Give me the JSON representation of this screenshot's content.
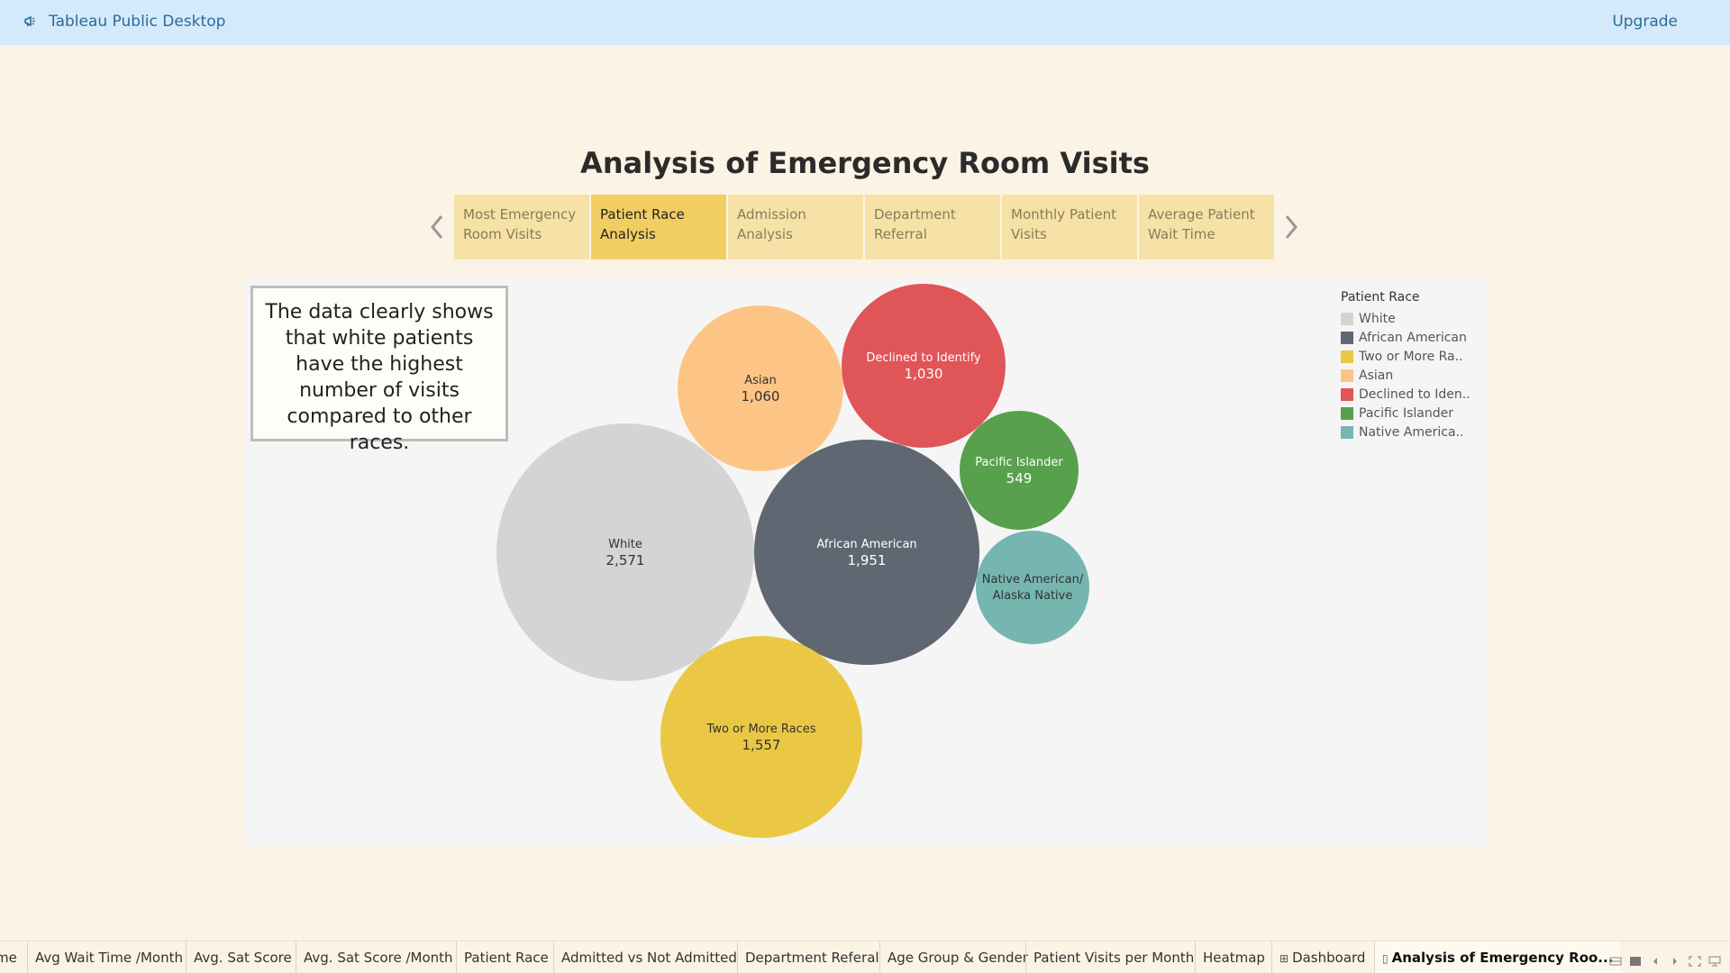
{
  "app": {
    "title": "Tableau Public Desktop",
    "upgrade_label": "Upgrade"
  },
  "story": {
    "title": "Analysis of Emergency Room Visits",
    "points": [
      {
        "label": "Most Emergency Room Visits",
        "active": false
      },
      {
        "label": "Patient Race Analysis",
        "active": true
      },
      {
        "label": "Admission Analysis",
        "active": false
      },
      {
        "label": "Department Referral",
        "active": false
      },
      {
        "label": "Monthly Patient Visits",
        "active": false
      },
      {
        "label": "Average Patient Wait Time",
        "active": false
      }
    ],
    "caption": "The data clearly shows that white patients have the highest number of visits compared to other races."
  },
  "chart_data": {
    "type": "bubble",
    "legend_title": "Patient Race",
    "legend_placement": "top-right",
    "series": [
      {
        "name": "White",
        "legend_label": "White",
        "value": 2571,
        "value_label": "2,571",
        "color": "#d4d4d4",
        "text_color": "#333333"
      },
      {
        "name": "African American",
        "legend_label": "African American",
        "value": 1951,
        "value_label": "1,951",
        "color": "#5f6772",
        "text_color": "#ffffff"
      },
      {
        "name": "Two or More Races",
        "legend_label": "Two or More Ra..",
        "value": 1557,
        "value_label": "1,557",
        "color": "#eac844",
        "text_color": "#333333"
      },
      {
        "name": "Asian",
        "legend_label": "Asian",
        "value": 1060,
        "value_label": "1,060",
        "color": "#fdc585",
        "text_color": "#333333"
      },
      {
        "name": "Declined to Identify",
        "legend_label": "Declined to Iden..",
        "value": 1030,
        "value_label": "1,030",
        "color": "#e05558",
        "text_color": "#ffffff"
      },
      {
        "name": "Pacific Islander",
        "legend_label": "Pacific Islander",
        "value": 549,
        "value_label": "549",
        "color": "#58a04d",
        "text_color": "#ffffff"
      },
      {
        "name": "Native American/Alaska Native",
        "legend_label": "Native America..",
        "value": null,
        "value_label": "",
        "color": "#76b6b0",
        "text_color": "#333333"
      }
    ]
  },
  "sheet_tabs": [
    {
      "label": "me",
      "active": false,
      "icon": ""
    },
    {
      "label": "Avg Wait Time /Month",
      "active": false,
      "icon": ""
    },
    {
      "label": "Avg. Sat Score",
      "active": false,
      "icon": ""
    },
    {
      "label": "Avg. Sat Score /Month",
      "active": false,
      "icon": ""
    },
    {
      "label": "Patient Race",
      "active": false,
      "icon": ""
    },
    {
      "label": "Admitted vs Not Admitted",
      "active": false,
      "icon": ""
    },
    {
      "label": "Department Referal",
      "active": false,
      "icon": ""
    },
    {
      "label": "Age Group & Gender",
      "active": false,
      "icon": ""
    },
    {
      "label": "Patient Visits per Month",
      "active": false,
      "icon": ""
    },
    {
      "label": "Heatmap",
      "active": false,
      "icon": ""
    },
    {
      "label": "Dashboard",
      "active": false,
      "icon": "dashboard-icon"
    },
    {
      "label": "Analysis of Emergency Roo...",
      "active": true,
      "icon": "story-icon"
    }
  ]
}
